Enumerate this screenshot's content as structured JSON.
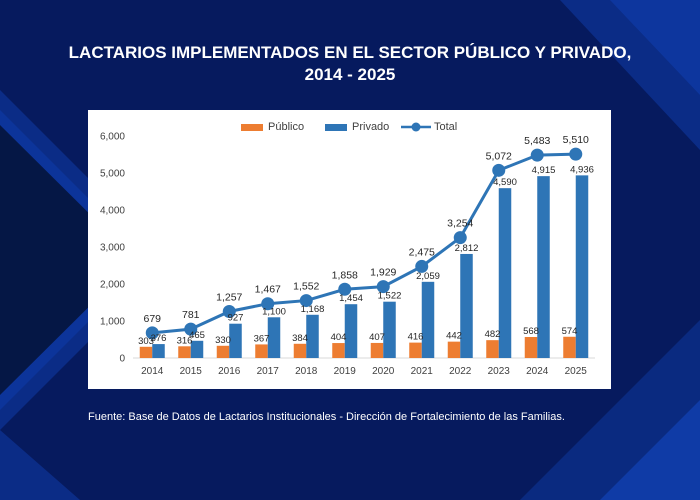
{
  "page": {
    "title_line1": "LACTARIOS IMPLEMENTADOS EN EL SECTOR PÚBLICO Y PRIVADO,",
    "title_line2": "2014 - 2025",
    "source": "Fuente: Base de Datos de Lactarios Institucionales - Dirección de Fortalecimiento de las Familias."
  },
  "chart_data": {
    "type": "bar",
    "title": "",
    "xlabel": "",
    "ylabel": "",
    "categories": [
      "2014",
      "2015",
      "2016",
      "2017",
      "2018",
      "2019",
      "2020",
      "2021",
      "2022",
      "2023",
      "2024",
      "2025"
    ],
    "series": [
      {
        "name": "Público",
        "type": "bar",
        "color": "#ed7d31",
        "values": [
          303,
          316,
          330,
          367,
          384,
          404,
          407,
          416,
          442,
          482,
          568,
          574
        ]
      },
      {
        "name": "Privado",
        "type": "bar",
        "color": "#2e75b6",
        "values": [
          376,
          465,
          927,
          1100,
          1168,
          1454,
          1522,
          2059,
          2812,
          4590,
          4915,
          4936
        ]
      },
      {
        "name": "Total",
        "type": "line",
        "color": "#2e75b6",
        "values": [
          679,
          781,
          1257,
          1467,
          1552,
          1858,
          1929,
          2475,
          3254,
          5072,
          5483,
          5510
        ]
      }
    ],
    "ylim": [
      0,
      6000
    ],
    "yticks": [
      0,
      1000,
      2000,
      3000,
      4000,
      5000,
      6000
    ],
    "ytick_labels": [
      "0",
      "1,000",
      "2,000",
      "3,000",
      "4,000",
      "5,000",
      "6,000"
    ],
    "legend_position": "top-center",
    "grid": false
  }
}
